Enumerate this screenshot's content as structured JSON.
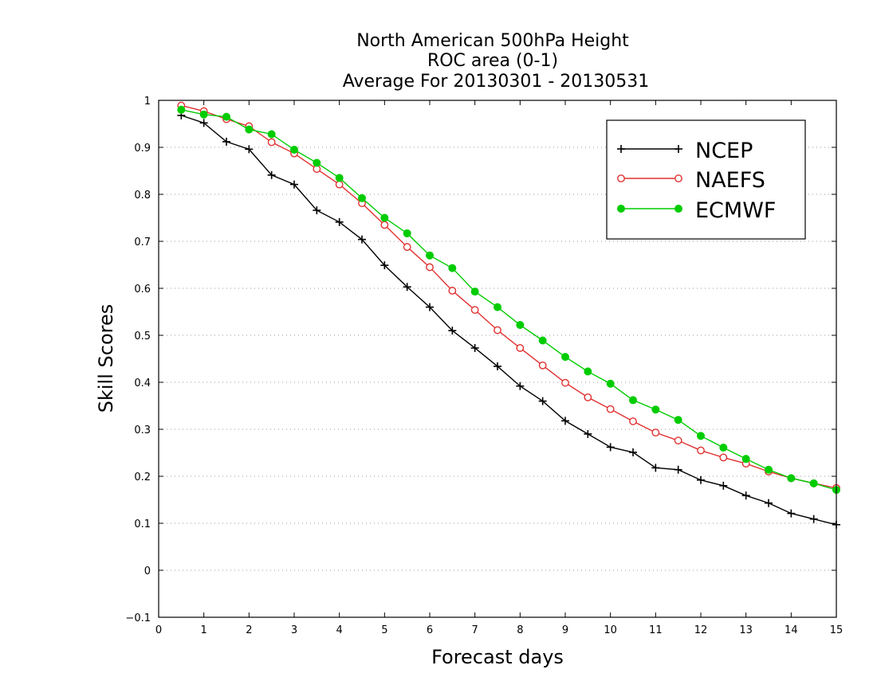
{
  "chart_data": {
    "type": "line",
    "title_lines": [
      "North American 500hPa Height",
      "ROC area (0-1)",
      "Average For 20130301 - 20130531"
    ],
    "xlabel": "Forecast days",
    "ylabel": "Skill Scores",
    "xlim": [
      0,
      15
    ],
    "ylim": [
      -0.1,
      1
    ],
    "x_ticks": [
      0,
      1,
      2,
      3,
      4,
      5,
      6,
      7,
      8,
      9,
      10,
      11,
      12,
      13,
      14,
      15
    ],
    "x_tick_labels": [
      "0",
      "1",
      "2",
      "3",
      "4",
      "5",
      "6",
      "7",
      "8",
      "9",
      "10",
      "11",
      "12",
      "13",
      "14",
      "15"
    ],
    "y_ticks": [
      -0.1,
      0,
      0.1,
      0.2,
      0.3,
      0.4,
      0.5,
      0.6,
      0.7,
      0.8,
      0.9,
      1
    ],
    "y_tick_labels": [
      "−0.1",
      "0",
      "0.1",
      "0.2",
      "0.3",
      "0.4",
      "0.5",
      "0.6",
      "0.7",
      "0.8",
      "0.9",
      "1"
    ],
    "grid": "horizontal dotted",
    "legend_position": "top-right",
    "x": [
      0.5,
      1,
      1.5,
      2,
      2.5,
      3,
      3.5,
      4,
      4.5,
      5,
      5.5,
      6,
      6.5,
      7,
      7.5,
      8,
      8.5,
      9,
      9.5,
      10,
      10.5,
      11,
      11.5,
      12,
      12.5,
      13,
      13.5,
      14,
      14.5,
      15
    ],
    "series": [
      {
        "name": "NCEP",
        "color": "#000000",
        "marker": "plus",
        "values": [
          0.968,
          0.952,
          0.912,
          0.896,
          0.841,
          0.821,
          0.766,
          0.741,
          0.704,
          0.649,
          0.603,
          0.56,
          0.51,
          0.473,
          0.434,
          0.392,
          0.36,
          0.318,
          0.29,
          0.262,
          0.251,
          0.218,
          0.214,
          0.192,
          0.18,
          0.159,
          0.143,
          0.121,
          0.109,
          0.097
        ]
      },
      {
        "name": "NAEFS",
        "color": "#e03030",
        "marker": "open-circle",
        "values": [
          0.989,
          0.977,
          0.96,
          0.945,
          0.911,
          0.887,
          0.854,
          0.821,
          0.781,
          0.735,
          0.688,
          0.645,
          0.595,
          0.554,
          0.511,
          0.473,
          0.436,
          0.399,
          0.368,
          0.343,
          0.317,
          0.293,
          0.276,
          0.255,
          0.24,
          0.227,
          0.21,
          0.196,
          0.185,
          0.175
        ]
      },
      {
        "name": "ECMWF",
        "color": "#00cc00",
        "marker": "filled-circle",
        "values": [
          0.98,
          0.97,
          0.965,
          0.938,
          0.928,
          0.895,
          0.867,
          0.835,
          0.792,
          0.75,
          0.717,
          0.67,
          0.643,
          0.593,
          0.56,
          0.522,
          0.489,
          0.454,
          0.423,
          0.397,
          0.362,
          0.342,
          0.32,
          0.286,
          0.261,
          0.237,
          0.214,
          0.196,
          0.185,
          0.171
        ]
      }
    ]
  }
}
